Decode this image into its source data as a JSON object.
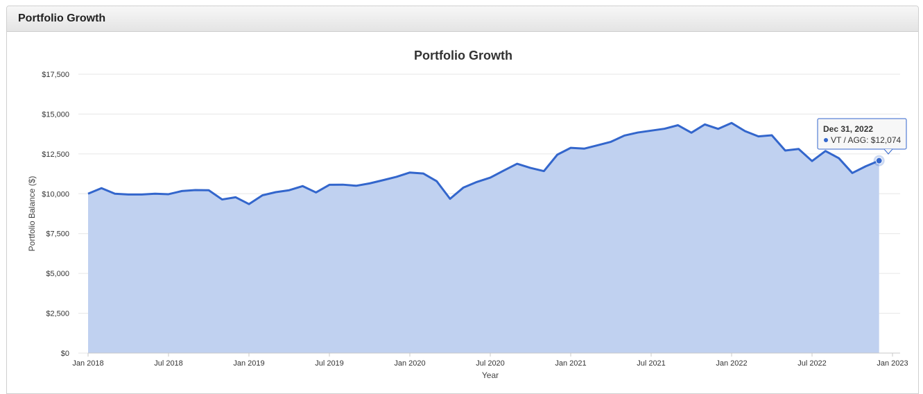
{
  "panel": {
    "title": "Portfolio Growth"
  },
  "colors": {
    "line": "#3366cc",
    "area": "#c0d1f0",
    "grid": "#e6e6e6",
    "tooltip_border": "#3366cc"
  },
  "tooltip": {
    "date": "Dec 31, 2022",
    "label": "VT / AGG: $12,074"
  },
  "chart_data": {
    "type": "area",
    "title": "Portfolio Growth",
    "xlabel": "Year",
    "ylabel": "Portfolio Balance ($)",
    "ylim": [
      0,
      17500
    ],
    "y_ticks": [
      0,
      2500,
      5000,
      7500,
      10000,
      12500,
      15000,
      17500
    ],
    "y_tick_labels": [
      "$0",
      "$2,500",
      "$5,000",
      "$7,500",
      "$10,000",
      "$12,500",
      "$15,000",
      "$17,500"
    ],
    "x_tick_labels": [
      "Jan 2018",
      "Jul 2018",
      "Jan 2019",
      "Jul 2019",
      "Jan 2020",
      "Jul 2020",
      "Jan 2021",
      "Jul 2021",
      "Jan 2022",
      "Jul 2022",
      "Jan 2023"
    ],
    "x_range": [
      "Jan 2018",
      "Jan 2023"
    ],
    "grid": true,
    "legend": "none",
    "series": [
      {
        "name": "VT / AGG",
        "x": [
          "2018-01",
          "2018-02",
          "2018-03",
          "2018-04",
          "2018-05",
          "2018-06",
          "2018-07",
          "2018-08",
          "2018-09",
          "2018-10",
          "2018-11",
          "2018-12",
          "2019-01",
          "2019-02",
          "2019-03",
          "2019-04",
          "2019-05",
          "2019-06",
          "2019-07",
          "2019-08",
          "2019-09",
          "2019-10",
          "2019-11",
          "2019-12",
          "2020-01",
          "2020-02",
          "2020-03",
          "2020-04",
          "2020-05",
          "2020-06",
          "2020-07",
          "2020-08",
          "2020-09",
          "2020-10",
          "2020-11",
          "2020-12",
          "2021-01",
          "2021-02",
          "2021-03",
          "2021-04",
          "2021-05",
          "2021-06",
          "2021-07",
          "2021-08",
          "2021-09",
          "2021-10",
          "2021-11",
          "2021-12",
          "2022-01",
          "2022-02",
          "2022-03",
          "2022-04",
          "2022-05",
          "2022-06",
          "2022-07",
          "2022-08",
          "2022-09",
          "2022-10",
          "2022-11",
          "2022-12"
        ],
        "values": [
          10000,
          10350,
          10000,
          9950,
          9950,
          10000,
          9970,
          10170,
          10230,
          10220,
          9640,
          9780,
          9350,
          9900,
          10100,
          10220,
          10480,
          10080,
          10560,
          10570,
          10500,
          10650,
          10850,
          11060,
          11330,
          11270,
          10790,
          9680,
          10390,
          10740,
          11010,
          11450,
          11880,
          11620,
          11420,
          12450,
          12880,
          12830,
          13040,
          13260,
          13650,
          13840,
          13960,
          14080,
          14300,
          13830,
          14350,
          14070,
          14440,
          13930,
          13600,
          13670,
          12710,
          12810,
          12050,
          12680,
          12230,
          11300,
          11720,
          12074
        ]
      }
    ]
  }
}
